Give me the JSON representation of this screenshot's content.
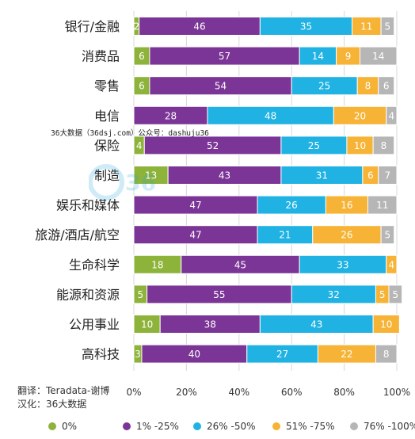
{
  "chart_data": {
    "type": "bar",
    "orientation": "horizontal",
    "stacked": true,
    "percent_axis": true,
    "categories": [
      "银行/金融",
      "消费品",
      "零售",
      "电信",
      "保险",
      "制造",
      "娱乐和媒体",
      "旅游/酒店/航空",
      "生命科学",
      "能源和资源",
      "公用事业",
      "高科技"
    ],
    "series": [
      {
        "name": "0%",
        "color": "#8db33a",
        "values": [
          2,
          6,
          6,
          0,
          4,
          13,
          0,
          0,
          18,
          5,
          10,
          3
        ]
      },
      {
        "name": "1% -25%",
        "color": "#7b3596",
        "values": [
          46,
          57,
          54,
          28,
          52,
          43,
          47,
          47,
          45,
          55,
          38,
          40
        ]
      },
      {
        "name": "26% -50%",
        "color": "#1fb2e2",
        "values": [
          35,
          14,
          25,
          48,
          25,
          31,
          26,
          21,
          33,
          32,
          43,
          27
        ]
      },
      {
        "name": "51% -75%",
        "color": "#f6b335",
        "values": [
          11,
          9,
          8,
          20,
          10,
          6,
          16,
          26,
          4,
          5,
          10,
          22
        ]
      },
      {
        "name": "76% -100%",
        "color": "#b6b6b6",
        "values": [
          5,
          14,
          6,
          4,
          8,
          7,
          11,
          5,
          0,
          5,
          0,
          8
        ]
      }
    ],
    "xaxis_ticks": [
      "0%",
      "20%",
      "40%",
      "60%",
      "80%",
      "100%"
    ],
    "xlim": [
      0,
      100
    ],
    "grid": true,
    "legend_position": "bottom"
  },
  "credits": {
    "line1": "翻译：Teradata-谢博",
    "line2": "汉化：36大数据"
  },
  "watermark": {
    "text": "36大数据（36dsj.com）公众号：dashuju36"
  }
}
